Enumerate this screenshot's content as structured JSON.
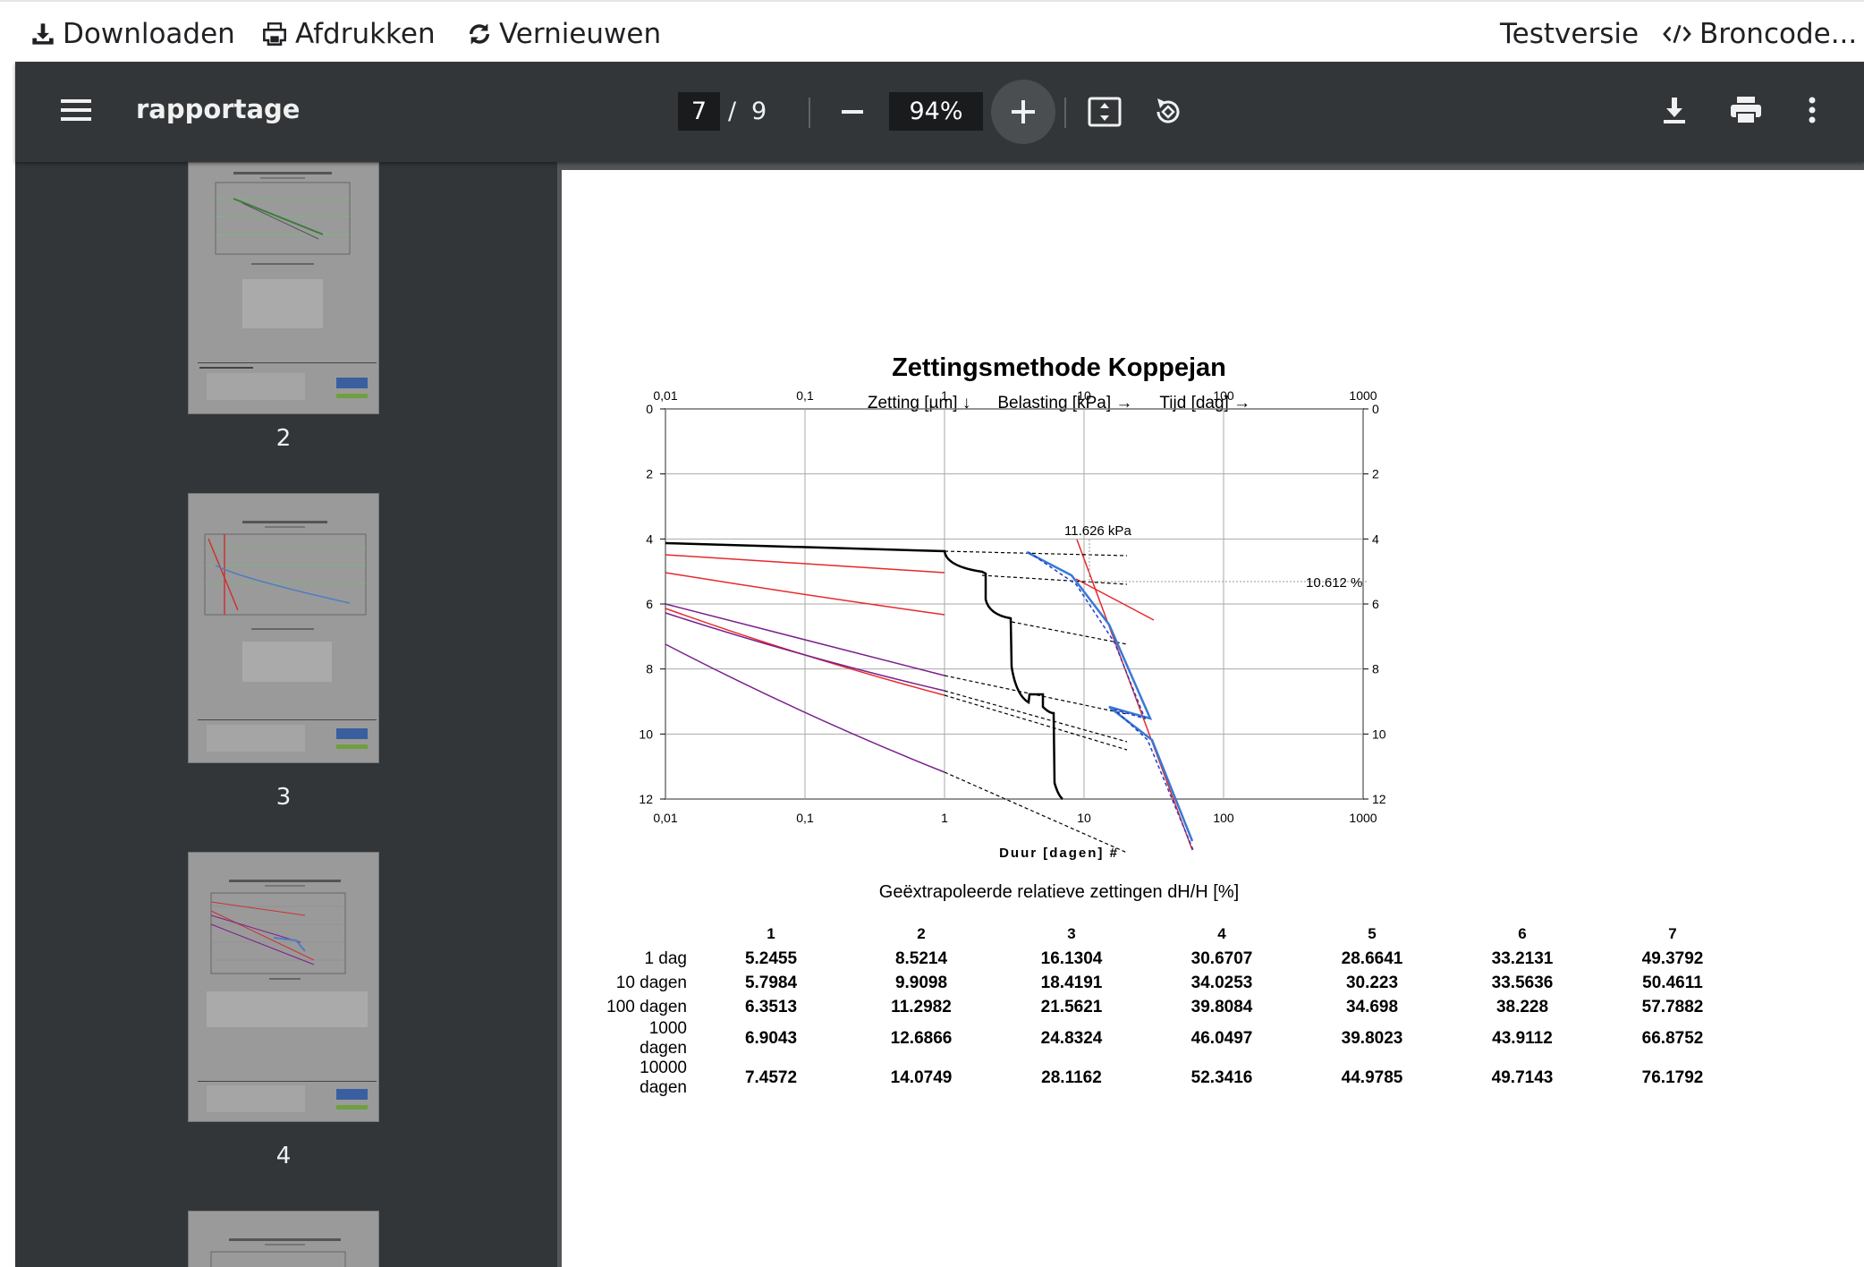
{
  "topbar": {
    "download": "Downloaden",
    "print": "Afdrukken",
    "refresh": "Vernieuwen",
    "test": "Testversie",
    "source": "Broncode..."
  },
  "toolbar": {
    "title": "rapportage",
    "page_current": "7",
    "page_sep": "/",
    "page_total": "9",
    "zoom": "94%"
  },
  "sidebar": {
    "thumbs": [
      {
        "label": "2"
      },
      {
        "label": "3"
      },
      {
        "label": "4"
      }
    ]
  },
  "chart_data": {
    "type": "line",
    "title": "Zettingsmethode Koppejan",
    "legend": [
      "Zetting [µm] ↓",
      "Belasting [kPa] →",
      "Tijd [dag] →"
    ],
    "xlabel": "Duur [dagen] #",
    "x_scale": "log",
    "xlim": [
      0.01,
      1000
    ],
    "ylim": [
      0,
      12
    ],
    "y_inverted": true,
    "x_ticks": [
      "0,01",
      "0,1",
      "1",
      "10",
      "100",
      "1000"
    ],
    "y_ticks": [
      "0",
      "2",
      "4",
      "6",
      "8",
      "10",
      "12"
    ],
    "annotations": [
      "11.626 kPa",
      "10.612 %"
    ],
    "series": []
  },
  "table": {
    "title": "Geëxtrapoleerde relatieve zettingen dH/H [%]",
    "columns": [
      "1",
      "2",
      "3",
      "4",
      "5",
      "6",
      "7"
    ],
    "rows": [
      {
        "label": "1 dag",
        "values": [
          "5.2455",
          "8.5214",
          "16.1304",
          "30.6707",
          "28.6641",
          "33.2131",
          "49.3792"
        ]
      },
      {
        "label": "10 dagen",
        "values": [
          "5.7984",
          "9.9098",
          "18.4191",
          "34.0253",
          "30.223",
          "33.5636",
          "50.4611"
        ]
      },
      {
        "label": "100 dagen",
        "values": [
          "6.3513",
          "11.2982",
          "21.5621",
          "39.8084",
          "34.698",
          "38.228",
          "57.7882"
        ]
      },
      {
        "label": "1000 dagen",
        "values": [
          "6.9043",
          "12.6866",
          "24.8324",
          "46.0497",
          "39.8023",
          "43.9112",
          "66.8752"
        ]
      },
      {
        "label": "10000 dagen",
        "values": [
          "7.4572",
          "14.0749",
          "28.1162",
          "52.3416",
          "44.9785",
          "49.7143",
          "76.1792"
        ]
      }
    ]
  },
  "colors": {
    "toolbar_bg": "#323639",
    "viewer_bg": "#525659",
    "red": "#e8282b",
    "purple": "#7b1f8c",
    "blue": "#3a78d4"
  }
}
